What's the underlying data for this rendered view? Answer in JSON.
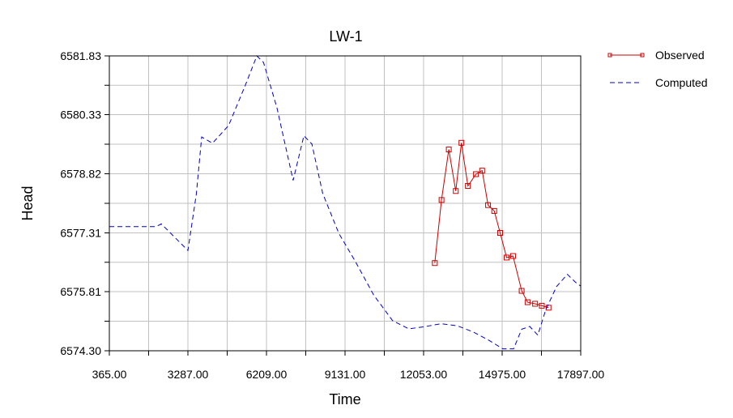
{
  "chart_data": {
    "type": "line",
    "title": "LW-1",
    "xlabel": "Time",
    "ylabel": "Head",
    "xlim": [
      365.0,
      17897.0
    ],
    "ylim": [
      6574.3,
      6581.83
    ],
    "x_ticks": [
      "365.00",
      "3287.00",
      "6209.00",
      "9131.00",
      "12053.00",
      "14975.00",
      "17897.00"
    ],
    "x_tick_values": [
      365,
      3287,
      6209,
      9131,
      12053,
      14975,
      17897
    ],
    "y_ticks": [
      "6574.30",
      "6575.81",
      "6577.31",
      "6578.82",
      "6580.33",
      "6581.83"
    ],
    "y_tick_values": [
      6574.3,
      6575.81,
      6577.31,
      6578.82,
      6580.33,
      6581.83
    ],
    "grid": true,
    "legend_position": "top-right",
    "series": [
      {
        "name": "Observed",
        "color": "#cc0000",
        "style": "solid-square-markers",
        "x": [
          12470,
          12720,
          12990,
          13250,
          13460,
          13700,
          14000,
          14230,
          14450,
          14680,
          14900,
          15140,
          15380,
          15700,
          15920,
          16200,
          16450,
          16700
        ],
        "y": [
          6576.54,
          6578.15,
          6579.44,
          6578.38,
          6579.61,
          6578.51,
          6578.81,
          6578.9,
          6578.02,
          6577.87,
          6577.31,
          6576.68,
          6576.72,
          6575.83,
          6575.54,
          6575.5,
          6575.45,
          6575.4
        ]
      },
      {
        "name": "Computed",
        "color": "#0000cc",
        "style": "dashed",
        "x": [
          365,
          2100,
          2300,
          3287,
          3600,
          3800,
          4200,
          4800,
          5400,
          5850,
          6100,
          6600,
          7200,
          7600,
          7900,
          8300,
          8900,
          9500,
          10200,
          10900,
          11500,
          12053,
          12700,
          13300,
          13900,
          14500,
          15000,
          15400,
          15700,
          16000,
          16300,
          16600,
          17000,
          17400,
          17700,
          17897
        ],
        "y": [
          6577.47,
          6577.47,
          6577.54,
          6576.86,
          6578.3,
          6579.76,
          6579.6,
          6580.05,
          6581.04,
          6581.83,
          6581.66,
          6580.5,
          6578.65,
          6579.79,
          6579.58,
          6578.32,
          6577.3,
          6576.6,
          6575.72,
          6575.07,
          6574.86,
          6574.91,
          6574.99,
          6574.94,
          6574.78,
          6574.56,
          6574.35,
          6574.35,
          6574.85,
          6574.92,
          6574.7,
          6575.35,
          6575.94,
          6576.25,
          6576.05,
          6575.95
        ]
      }
    ]
  }
}
